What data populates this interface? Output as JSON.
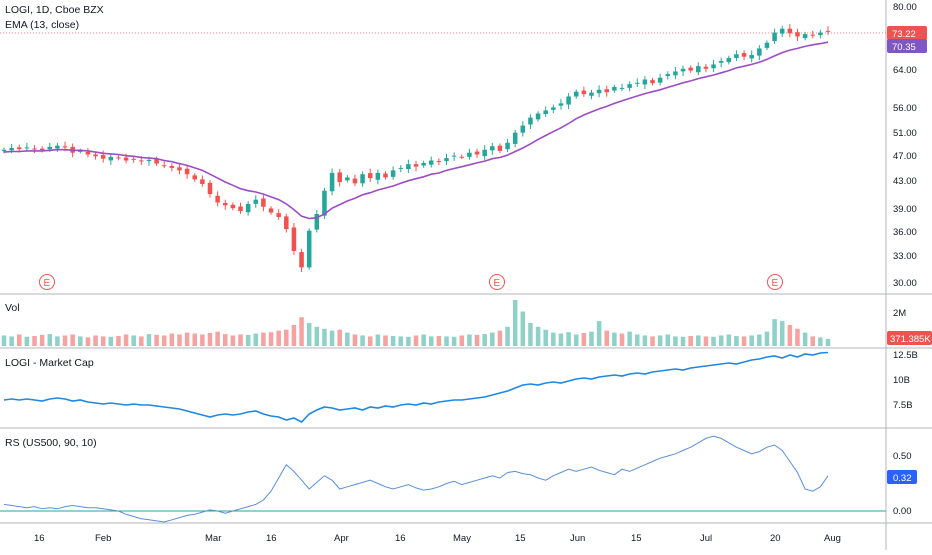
{
  "colors": {
    "up": "#26a69a",
    "down": "#ef5350",
    "ema": "#9c4dc4",
    "mcap": "#1e88e5",
    "rs": "#5b8fd6",
    "grid": "#e8ebf0",
    "border": "#b2b5be",
    "earnings": "#f05350",
    "last_price_tag": "#ef5350",
    "ema_tag": "#7e57c2",
    "rs_tag": "#2962ff"
  },
  "legend": {
    "price": "LOGI, 1D, Cboe BZX",
    "ema": "EMA (13, close)",
    "volume": "Vol",
    "mcap": "LOGI - Market Cap",
    "rs": "RS (US500, 90, 10)"
  },
  "earnings_marker": "E",
  "tags": {
    "last_price": "73.22",
    "ema": "70.35",
    "volume": "371.385K",
    "rs": "0.32"
  },
  "chart_data": [
    {
      "type": "candlestick",
      "title": "LOGI, 1D, Cboe BZX",
      "y_scale": "log",
      "ylim": [
        29,
        82
      ],
      "y_ticks": [
        "80.00",
        "73.22",
        "70.35",
        "64.00",
        "56.00",
        "51.00",
        "47.00",
        "43.00",
        "39.00",
        "36.00",
        "33.00",
        "30.00"
      ],
      "x_labels": [
        "16",
        "Feb",
        "Mar",
        "16",
        "Apr",
        "16",
        "May",
        "15",
        "Jun",
        "15",
        "Jul",
        "20",
        "Aug"
      ],
      "earnings_events": [
        "late Jan",
        "late Apr",
        "late Jul"
      ],
      "last_price": 73.22,
      "close": [
        48.0,
        48.3,
        48.1,
        48.4,
        48.2,
        47.9,
        48.5,
        48.7,
        48.4,
        47.5,
        47.8,
        47.2,
        46.9,
        46.5,
        46.8,
        46.6,
        46.2,
        46.4,
        46.1,
        46.3,
        45.7,
        45.4,
        45.0,
        44.6,
        44.0,
        43.2,
        42.5,
        41.0,
        39.8,
        39.4,
        39.0,
        38.6,
        39.6,
        40.2,
        39.2,
        38.4,
        37.8,
        36.2,
        33.5,
        31.6,
        36.0,
        38.2,
        41.5,
        44.2,
        42.8,
        43.5,
        42.6,
        44.0,
        43.4,
        44.2,
        43.5,
        44.6,
        45.0,
        45.6,
        45.2,
        45.8,
        46.2,
        46.0,
        46.6,
        47.0,
        46.8,
        47.5,
        47.2,
        48.0,
        48.6,
        47.8,
        49.2,
        51.0,
        52.3,
        53.8,
        54.6,
        55.2,
        55.8,
        56.6,
        58.0,
        59.0,
        58.5,
        58.8,
        59.4,
        58.9,
        60.0,
        59.8,
        60.6,
        60.9,
        61.6,
        60.8,
        62.0,
        62.8,
        63.4,
        64.0,
        63.6,
        64.6,
        64.0,
        65.0,
        65.8,
        66.5,
        67.4,
        66.8,
        67.2,
        68.8,
        70.2,
        72.8,
        73.8,
        72.6,
        71.8,
        72.4,
        72.0,
        72.8,
        73.22
      ],
      "ema_13": [
        47.6,
        47.7,
        47.7,
        47.8,
        47.8,
        47.8,
        47.9,
        48.0,
        48.0,
        47.9,
        47.9,
        47.8,
        47.6,
        47.4,
        47.3,
        47.2,
        47.0,
        46.9,
        46.7,
        46.6,
        46.5,
        46.2,
        46.0,
        45.7,
        45.4,
        45.0,
        44.6,
        44.0,
        43.4,
        42.8,
        42.3,
        41.8,
        41.5,
        41.3,
        41.0,
        40.6,
        40.2,
        39.6,
        38.8,
        37.9,
        37.6,
        37.7,
        38.2,
        39.0,
        39.5,
        40.0,
        40.4,
        40.9,
        41.2,
        41.6,
        41.9,
        42.2,
        42.6,
        43.0,
        43.3,
        43.6,
        44.0,
        44.2,
        44.6,
        44.9,
        45.2,
        45.5,
        45.8,
        46.1,
        46.5,
        46.7,
        47.1,
        47.7,
        48.3,
        49.0,
        49.8,
        50.5,
        51.2,
        51.9,
        52.7,
        53.6,
        54.3,
        54.9,
        55.5,
        56.0,
        56.6,
        57.1,
        57.6,
        58.1,
        58.6,
        59.0,
        59.4,
        59.9,
        60.4,
        60.9,
        61.3,
        61.8,
        62.2,
        62.6,
        63.1,
        63.6,
        64.2,
        64.6,
        65.0,
        65.5,
        66.2,
        67.0,
        67.8,
        68.4,
        68.8,
        69.3,
        69.7,
        70.0,
        70.35
      ]
    },
    {
      "type": "bar",
      "title": "Vol",
      "y_ticks": [
        "2M"
      ],
      "last_value": "371.385K",
      "values": [
        0.55,
        0.5,
        0.6,
        0.48,
        0.52,
        0.58,
        0.62,
        0.5,
        0.55,
        0.6,
        0.5,
        0.45,
        0.55,
        0.5,
        0.48,
        0.52,
        0.6,
        0.55,
        0.5,
        0.62,
        0.58,
        0.55,
        0.65,
        0.6,
        0.7,
        0.65,
        0.6,
        0.68,
        0.75,
        0.62,
        0.55,
        0.6,
        0.58,
        0.65,
        0.7,
        0.72,
        0.8,
        0.85,
        1.1,
        1.5,
        1.2,
        1.0,
        0.9,
        0.8,
        0.85,
        0.7,
        0.6,
        0.55,
        0.5,
        0.6,
        0.55,
        0.52,
        0.5,
        0.48,
        0.55,
        0.6,
        0.5,
        0.52,
        0.5,
        0.48,
        0.55,
        0.6,
        0.58,
        0.62,
        0.7,
        0.8,
        1.0,
        2.4,
        1.8,
        1.2,
        1.0,
        0.85,
        0.7,
        0.65,
        0.72,
        0.6,
        0.68,
        0.75,
        1.3,
        0.8,
        0.7,
        0.65,
        0.75,
        0.6,
        0.55,
        0.5,
        0.55,
        0.6,
        0.5,
        0.48,
        0.52,
        0.55,
        0.5,
        0.48,
        0.55,
        0.6,
        0.52,
        0.5,
        0.55,
        0.6,
        0.75,
        1.4,
        1.3,
        1.1,
        0.9,
        0.7,
        0.5,
        0.45,
        0.37
      ],
      "units": "M"
    },
    {
      "type": "line",
      "title": "LOGI - Market Cap",
      "y_ticks": [
        "12.5B",
        "10B",
        "7.5B"
      ],
      "ylim": [
        5.5,
        13.0
      ],
      "values": [
        8.0,
        8.1,
        8.0,
        8.1,
        8.0,
        7.9,
        8.1,
        8.2,
        8.1,
        7.9,
        8.0,
        7.8,
        7.7,
        7.6,
        7.7,
        7.6,
        7.5,
        7.6,
        7.5,
        7.5,
        7.4,
        7.3,
        7.2,
        7.1,
        6.9,
        6.7,
        6.5,
        6.3,
        6.5,
        6.6,
        6.5,
        6.6,
        6.8,
        6.9,
        6.6,
        6.4,
        6.3,
        6.0,
        6.2,
        5.8,
        6.6,
        7.0,
        7.3,
        7.2,
        7.0,
        7.1,
        7.2,
        7.0,
        7.3,
        7.2,
        7.4,
        7.3,
        7.5,
        7.6,
        7.5,
        7.7,
        7.6,
        7.8,
        7.9,
        8.0,
        8.0,
        8.1,
        8.2,
        8.3,
        8.5,
        8.7,
        8.9,
        9.2,
        9.5,
        9.6,
        9.5,
        9.7,
        9.8,
        9.7,
        9.9,
        10.1,
        10.2,
        10.1,
        10.3,
        10.4,
        10.5,
        10.4,
        10.6,
        10.7,
        10.6,
        10.8,
        10.9,
        11.0,
        11.1,
        11.0,
        11.2,
        11.3,
        11.4,
        11.5,
        11.6,
        11.7,
        11.6,
        11.8,
        12.0,
        12.1,
        12.3,
        12.4,
        12.2,
        12.5,
        12.3,
        12.6,
        12.5,
        12.7,
        12.75
      ],
      "units": "B"
    },
    {
      "type": "line",
      "title": "RS (US500, 90, 10)",
      "y_ticks": [
        "0.50",
        "0.32",
        "0.00"
      ],
      "ylim": [
        -0.1,
        0.75
      ],
      "last_value": 0.32,
      "values": [
        0.06,
        0.05,
        0.04,
        0.03,
        0.04,
        0.02,
        0.03,
        0.02,
        0.04,
        0.05,
        0.04,
        0.03,
        0.03,
        0.02,
        0.01,
        0.0,
        -0.03,
        -0.05,
        -0.07,
        -0.08,
        -0.09,
        -0.1,
        -0.08,
        -0.06,
        -0.04,
        -0.03,
        -0.01,
        0.01,
        0.0,
        -0.02,
        0.0,
        0.02,
        0.04,
        0.06,
        0.1,
        0.18,
        0.3,
        0.42,
        0.36,
        0.28,
        0.2,
        0.26,
        0.32,
        0.28,
        0.2,
        0.22,
        0.24,
        0.26,
        0.28,
        0.25,
        0.22,
        0.2,
        0.22,
        0.24,
        0.21,
        0.19,
        0.2,
        0.22,
        0.25,
        0.27,
        0.24,
        0.26,
        0.28,
        0.3,
        0.32,
        0.3,
        0.35,
        0.36,
        0.34,
        0.33,
        0.3,
        0.28,
        0.32,
        0.35,
        0.38,
        0.36,
        0.38,
        0.4,
        0.37,
        0.35,
        0.33,
        0.38,
        0.36,
        0.39,
        0.42,
        0.45,
        0.48,
        0.5,
        0.52,
        0.55,
        0.58,
        0.62,
        0.66,
        0.68,
        0.66,
        0.62,
        0.58,
        0.55,
        0.52,
        0.54,
        0.58,
        0.6,
        0.55,
        0.45,
        0.35,
        0.2,
        0.18,
        0.22,
        0.32
      ],
      "zero_line": 0.0
    }
  ]
}
